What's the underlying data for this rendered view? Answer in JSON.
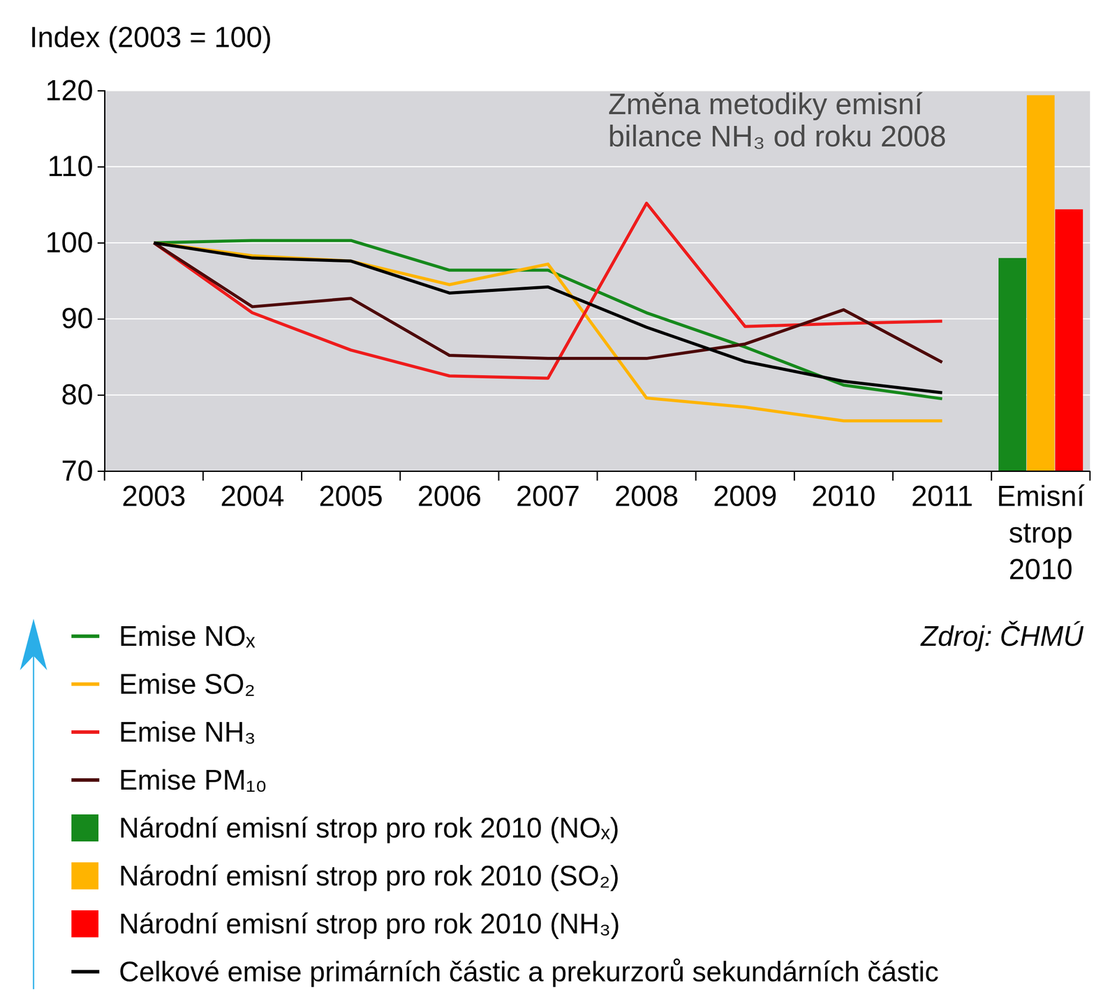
{
  "chart_data": {
    "type": "line",
    "y_label": "Index (2003 = 100)",
    "annotations": [
      "Změna metodiky emisní bilance NH₃ od roku 2008"
    ],
    "source": "Zdroj: ČHMÚ",
    "categories": [
      "2003",
      "2004",
      "2005",
      "2006",
      "2007",
      "2008",
      "2009",
      "2010",
      "2011",
      "Emisní strop 2010"
    ],
    "series": [
      {
        "name": "Emise NOₓ",
        "type": "line",
        "color": "#16891c",
        "values": [
          100,
          100.3,
          100.3,
          96.4,
          96.4,
          90.8,
          86.3,
          81.3,
          79.5,
          null
        ]
      },
      {
        "name": "Emise SO₂",
        "type": "line",
        "color": "#ffb400",
        "values": [
          100,
          98.3,
          97.6,
          94.5,
          97.2,
          79.6,
          78.4,
          76.6,
          76.6,
          null
        ]
      },
      {
        "name": "Emise NH₃",
        "type": "line",
        "color": "#ee1c1c",
        "values": [
          100,
          90.8,
          85.9,
          82.5,
          82.2,
          105.2,
          89.0,
          89.4,
          89.7,
          null
        ]
      },
      {
        "name": "Emise PM₁₀",
        "type": "line",
        "color": "#4d0a0a",
        "values": [
          100,
          91.6,
          92.7,
          85.2,
          84.8,
          84.8,
          86.7,
          91.2,
          84.3,
          null
        ]
      },
      {
        "name": "Národní emisní strop pro rok 2010 (NOₓ)",
        "type": "bar",
        "color": "#16891c",
        "values": [
          null,
          null,
          null,
          null,
          null,
          null,
          null,
          null,
          null,
          98.0
        ]
      },
      {
        "name": "Národní emisní strop pro rok 2010 (SO₂)",
        "type": "bar",
        "color": "#ffb400",
        "values": [
          null,
          null,
          null,
          null,
          null,
          null,
          null,
          null,
          null,
          119.4
        ]
      },
      {
        "name": "Národní emisní strop pro rok 2010 (NH₃)",
        "type": "bar",
        "color": "#ff0000",
        "values": [
          null,
          null,
          null,
          null,
          null,
          null,
          null,
          null,
          null,
          104.4
        ]
      },
      {
        "name": "Celkové emise primárních částic a prekurzorů sekundárních částic",
        "type": "line",
        "color": "#000000",
        "values": [
          100,
          98.0,
          97.6,
          93.4,
          94.2,
          88.9,
          84.4,
          81.8,
          80.3,
          null
        ]
      }
    ],
    "ylim": [
      70,
      120
    ],
    "yticks": [
      70,
      80,
      90,
      100,
      110,
      120
    ],
    "grid": true,
    "legend": "bottom"
  }
}
